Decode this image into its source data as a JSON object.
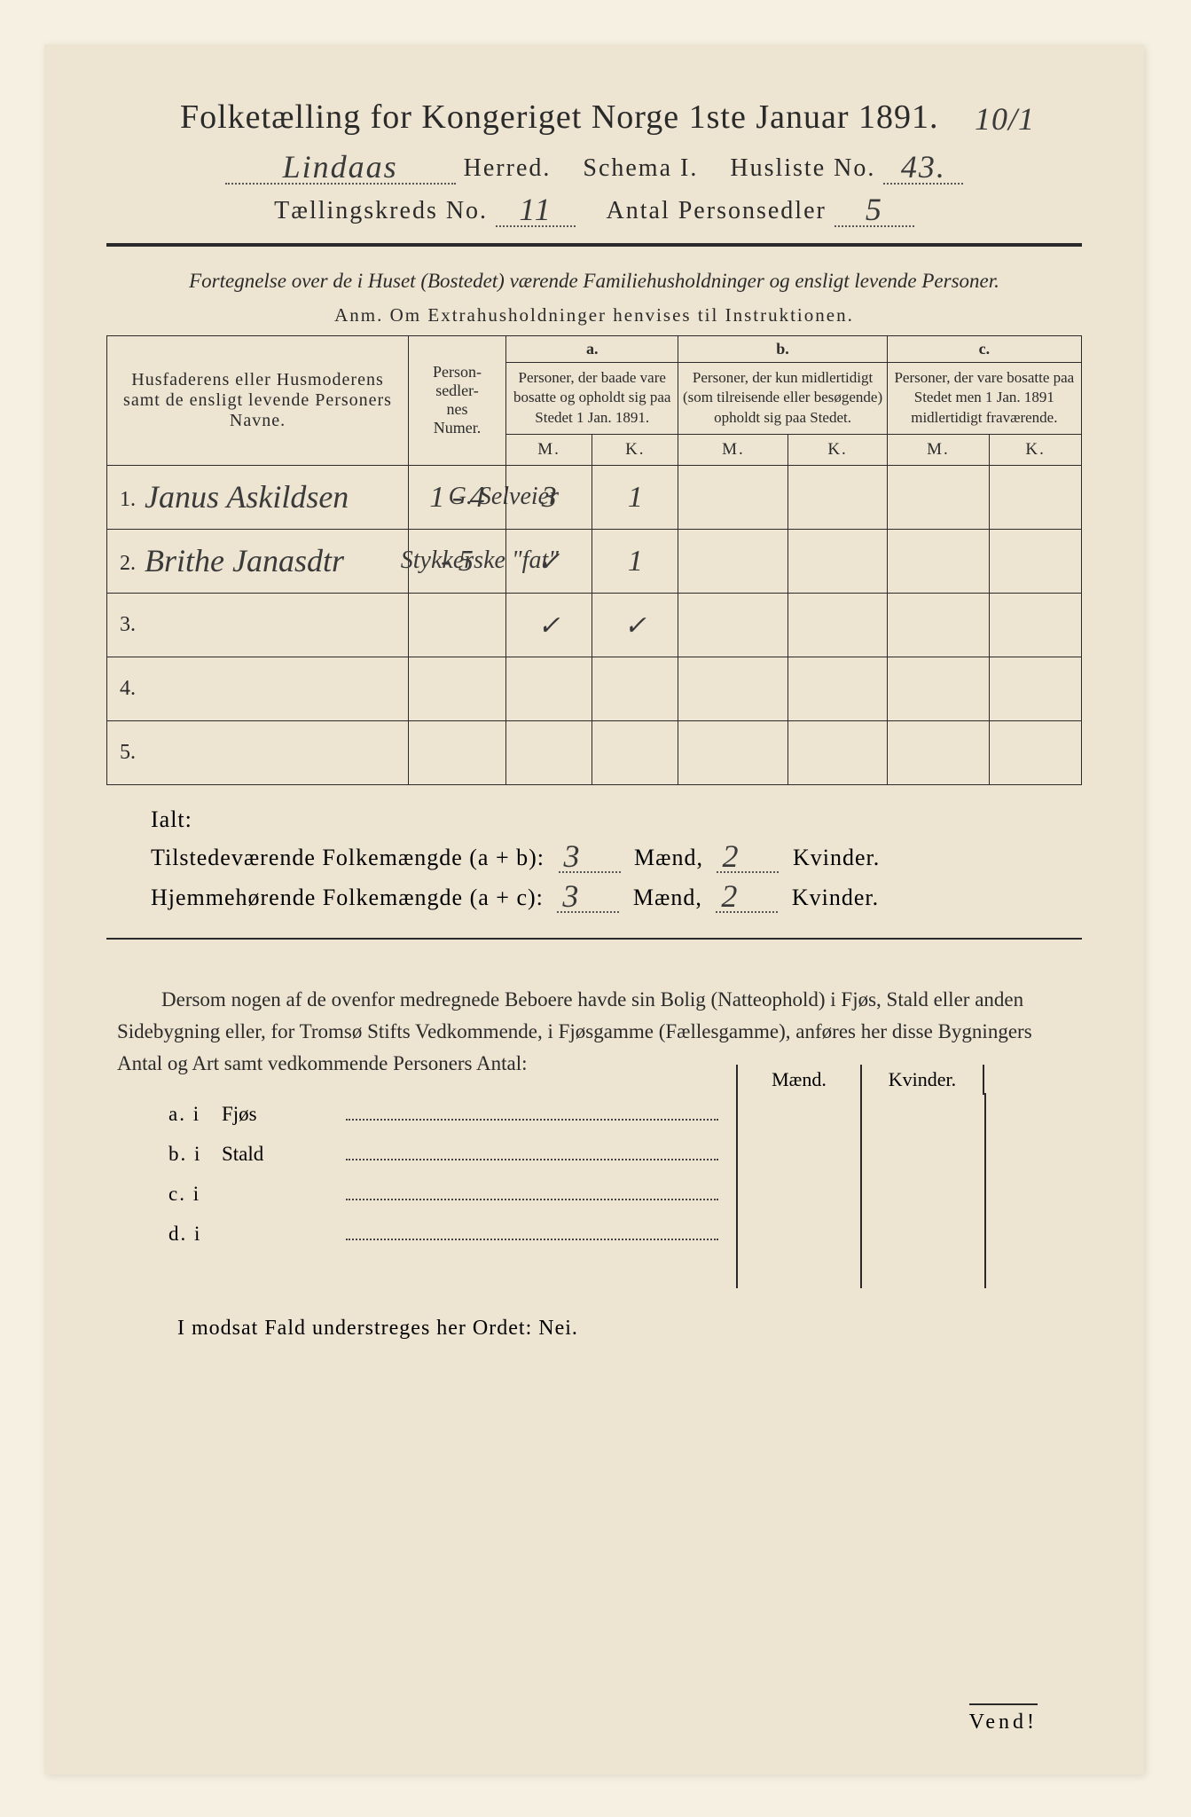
{
  "colors": {
    "page_bg": "#ede5d2",
    "body_bg": "#f5f0e1",
    "text": "#2a2a2a",
    "handwriting": "#3a3a3a",
    "border": "#2a2a2a"
  },
  "corner_note": "10/1",
  "title": "Folketælling for Kongeriget Norge 1ste Januar 1891.",
  "herred_label": "Herred.",
  "herred_value": "Lindaas",
  "schema_label": "Schema I.",
  "husliste_label": "Husliste No.",
  "husliste_value": "43.",
  "kreds_label": "Tællingskreds No.",
  "kreds_value": "11",
  "personsedler_label": "Antal Personsedler",
  "personsedler_value": "5",
  "subtitle": "Fortegnelse over de i Huset (Bostedet) værende Familiehusholdninger og ensligt levende Personer.",
  "anm": "Anm.  Om Extrahusholdninger henvises til Instruktionen.",
  "table": {
    "headers": {
      "names": "Husfaderens eller Husmoderens samt de ensligt levende Personers Navne.",
      "nummer": "Person-\nsedler-\nnes\nNumer.",
      "a_top": "a.",
      "a": "Personer, der baade vare bosatte og opholdt sig paa Stedet 1 Jan. 1891.",
      "b_top": "b.",
      "b": "Personer, der kun midlertidigt (som tilreisende eller besøgende) opholdt sig paa Stedet.",
      "c_top": "c.",
      "c": "Personer, der vare bosatte paa Stedet men 1 Jan. 1891 midlertidigt fraværende.",
      "M": "M.",
      "K": "K."
    },
    "rows": [
      {
        "num": "1.",
        "name": "Janus Askildsen",
        "nummer": "1 - 4",
        "aM": "3",
        "aK": "1",
        "bM": "",
        "bK": "",
        "cM": "",
        "cK": "",
        "margin_note": "G. Selveier"
      },
      {
        "num": "2.",
        "name": "Brithe Janasdtr",
        "nummer": "- 5",
        "aM": "✓",
        "aK": "1",
        "bM": "",
        "bK": "",
        "cM": "",
        "cK": "",
        "margin_note": "Stykkerske \"fat\""
      },
      {
        "num": "3.",
        "name": "",
        "nummer": "",
        "aM": "✓",
        "aK": "✓",
        "bM": "",
        "bK": "",
        "cM": "",
        "cK": "",
        "margin_note": ""
      },
      {
        "num": "4.",
        "name": "",
        "nummer": "",
        "aM": "",
        "aK": "",
        "bM": "",
        "bK": "",
        "cM": "",
        "cK": "",
        "margin_note": ""
      },
      {
        "num": "5.",
        "name": "",
        "nummer": "",
        "aM": "",
        "aK": "",
        "bM": "",
        "bK": "",
        "cM": "",
        "cK": "",
        "margin_note": ""
      }
    ]
  },
  "ialt": "Ialt:",
  "totals": {
    "line1_label": "Tilstedeværende Folkemængde (a + b):",
    "line1_m": "3",
    "line1_k": "2",
    "line2_label": "Hjemmehørende Folkemængde (a + c):",
    "line2_m": "3",
    "line2_k": "2",
    "maend": "Mænd,",
    "kvinder": "Kvinder."
  },
  "note_para": "Dersom nogen af de ovenfor medregnede Beboere havde sin Bolig (Natteophold) i Fjøs, Stald eller anden Sidebygning eller, for Tromsø Stifts Vedkommende, i Fjøsgamme (Fællesgamme), anføres her disse Bygningers Antal og Art samt vedkommende Personers Antal:",
  "abc": {
    "maend": "Mænd.",
    "kvinder": "Kvinder.",
    "rows": [
      {
        "label": "a.  i",
        "what": "Fjøs"
      },
      {
        "label": "b.  i",
        "what": "Stald"
      },
      {
        "label": "c.  i",
        "what": ""
      },
      {
        "label": "d.  i",
        "what": ""
      }
    ]
  },
  "nei_line": "I modsat Fald understreges her Ordet: Nei.",
  "vend": "Vend!"
}
